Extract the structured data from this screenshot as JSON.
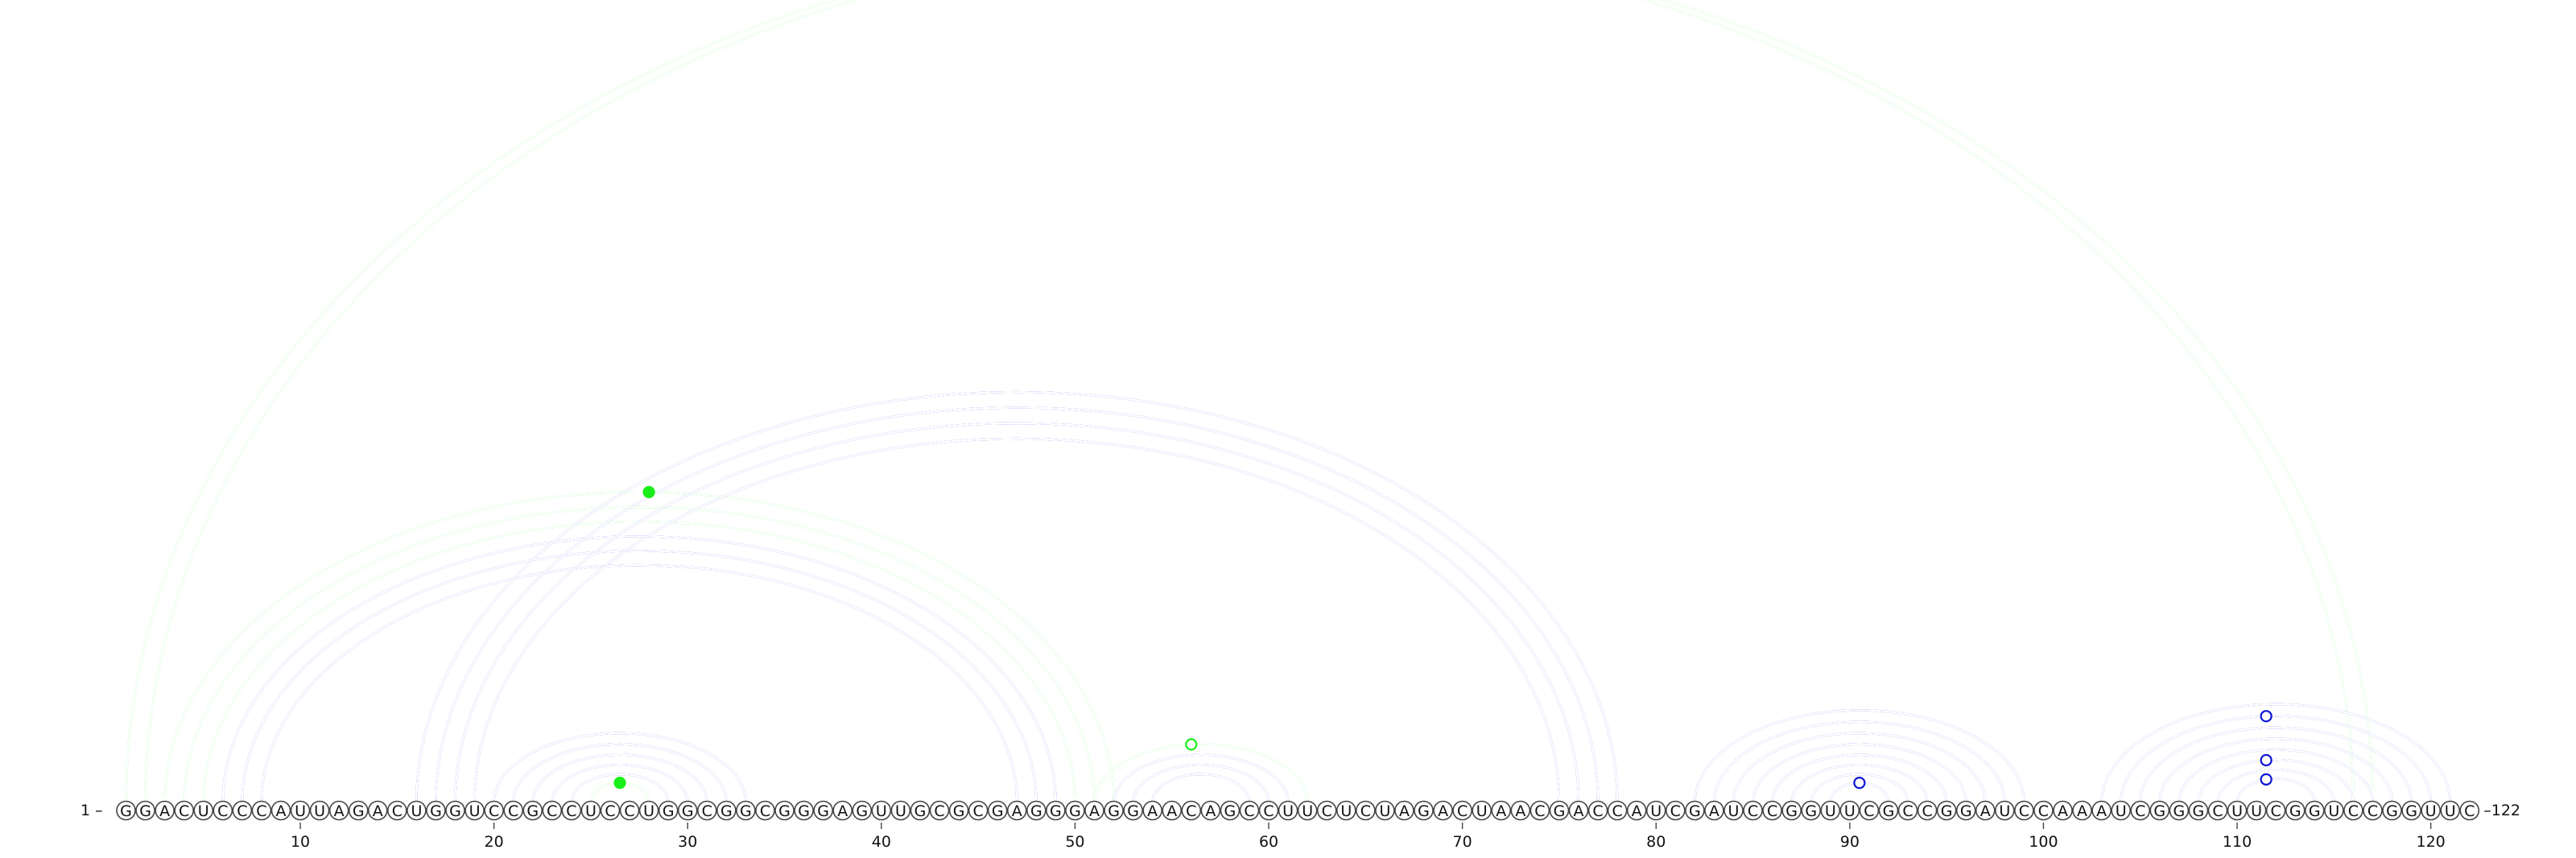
{
  "chart_data": {
    "type": "arc-diagram",
    "title": "",
    "sequence": "GGACUCCCAUUAGACUGGUCCGCCUCCUGGCGGCGGGAGUUGCGCGAGGGAGGAACAGCCUUCUCUAGACUAACGACCAUCGAUCCGGUUCGCCGGAUCCAAAUCGGGCUUCGGUCCGGUUC",
    "start_label": "1 –",
    "end_label": "–122",
    "ticks": [
      10,
      20,
      30,
      40,
      50,
      60,
      70,
      80,
      90,
      100,
      110,
      120
    ],
    "colors": {
      "blue": "#0a14d6",
      "green": "#19ee19",
      "circle_stroke": "#444444"
    },
    "arcs": [
      {
        "i": 1,
        "j": 116,
        "color": "green"
      },
      {
        "i": 2,
        "j": 117,
        "color": "green"
      },
      {
        "i": 3,
        "j": 52,
        "color": "green"
      },
      {
        "i": 4,
        "j": 51,
        "color": "green"
      },
      {
        "i": 5,
        "j": 50,
        "color": "green"
      },
      {
        "i": 6,
        "j": 49,
        "color": "blue"
      },
      {
        "i": 7,
        "j": 48,
        "color": "blue"
      },
      {
        "i": 8,
        "j": 47,
        "color": "blue"
      },
      {
        "i": 16,
        "j": 78,
        "color": "blue"
      },
      {
        "i": 17,
        "j": 77,
        "color": "blue"
      },
      {
        "i": 18,
        "j": 76,
        "color": "blue"
      },
      {
        "i": 19,
        "j": 75,
        "color": "blue"
      },
      {
        "i": 20,
        "j": 33,
        "color": "blue"
      },
      {
        "i": 21,
        "j": 32,
        "color": "blue"
      },
      {
        "i": 22,
        "j": 31,
        "color": "blue"
      },
      {
        "i": 23,
        "j": 30,
        "color": "blue"
      },
      {
        "i": 24,
        "j": 29,
        "color": "blue"
      },
      {
        "i": 25,
        "j": 28,
        "color": "green"
      },
      {
        "i": 51,
        "j": 62,
        "color": "green"
      },
      {
        "i": 52,
        "j": 61,
        "color": "blue"
      },
      {
        "i": 53,
        "j": 60,
        "color": "blue"
      },
      {
        "i": 54,
        "j": 59,
        "color": "blue"
      },
      {
        "i": 82,
        "j": 99,
        "color": "blue"
      },
      {
        "i": 83,
        "j": 98,
        "color": "blue"
      },
      {
        "i": 84,
        "j": 97,
        "color": "blue"
      },
      {
        "i": 85,
        "j": 96,
        "color": "blue"
      },
      {
        "i": 86,
        "j": 95,
        "color": "blue"
      },
      {
        "i": 87,
        "j": 94,
        "color": "blue"
      },
      {
        "i": 88,
        "j": 93,
        "color": "blue"
      },
      {
        "i": 89,
        "j": 92,
        "color": "blue"
      },
      {
        "i": 103,
        "j": 121,
        "color": "blue"
      },
      {
        "i": 104,
        "j": 120,
        "color": "blue"
      },
      {
        "i": 105,
        "j": 119,
        "color": "blue"
      },
      {
        "i": 106,
        "j": 118,
        "color": "blue"
      },
      {
        "i": 107,
        "j": 117,
        "color": "blue"
      },
      {
        "i": 108,
        "j": 116,
        "color": "blue"
      },
      {
        "i": 109,
        "j": 115,
        "color": "blue"
      },
      {
        "i": 110,
        "j": 114,
        "color": "blue"
      }
    ],
    "loop_markers": [
      {
        "pos": 26.5,
        "on_arc": "25-28",
        "style": "filled",
        "color": "green"
      },
      {
        "pos": 28,
        "on_arc": "3-52",
        "style": "filled",
        "color": "green"
      },
      {
        "pos": 56,
        "on_arc": "51-62",
        "style": "open",
        "color": "green"
      },
      {
        "pos": 90.5,
        "on_arc": "89-92",
        "style": "open",
        "color": "blue"
      },
      {
        "pos": 111.5,
        "on_arc": "110-114",
        "style": "open",
        "color": "blue"
      },
      {
        "pos": 111.5,
        "on_arc": "108-116",
        "style": "open",
        "color": "blue"
      },
      {
        "pos": 111.5,
        "on_arc": "104-120",
        "style": "open",
        "color": "blue"
      }
    ]
  }
}
